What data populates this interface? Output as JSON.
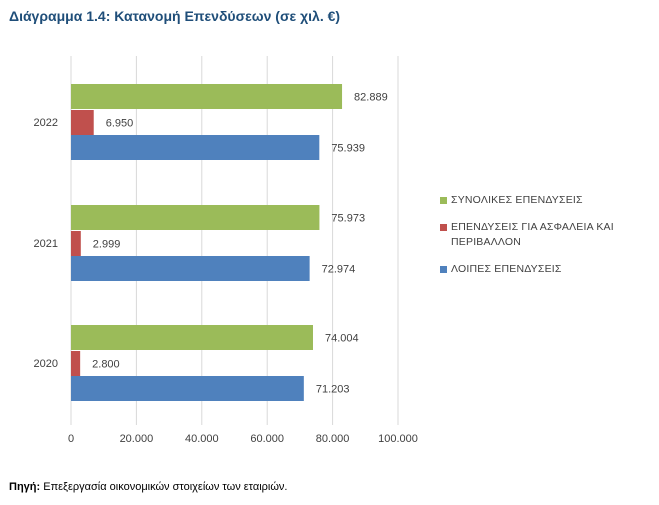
{
  "title": "Διάγραμμα 1.4: Κατανομή Επενδύσεων (σε χιλ. €)",
  "source": {
    "label": "Πηγή:",
    "text": " Επεξεργασία οικονομικών στοιχείων των εταιριών."
  },
  "chart_data": {
    "type": "bar",
    "orientation": "horizontal",
    "title": "Διάγραμμα 1.4: Κατανομή Επενδύσεων (σε χιλ. €)",
    "categories": [
      "2022",
      "2021",
      "2020"
    ],
    "series": [
      {
        "name": "ΣΥΝΟΛΙΚΕΣ ΕΠΕΝΔΥΣΕΙΣ",
        "color": "#9bbb59",
        "values": [
          82889,
          75973,
          74004
        ],
        "labels": [
          "82.889",
          "75.973",
          "74.004"
        ]
      },
      {
        "name": "ΕΠΕΝΔΥΣΕΙΣ ΓΙΑ ΑΣΦΑΛΕΙΑ ΚΑΙ ΠΕΡΙΒΑΛΛΟΝ",
        "color": "#c0504d",
        "values": [
          6950,
          2999,
          2800
        ],
        "labels": [
          "6.950",
          "2.999",
          "2.800"
        ]
      },
      {
        "name": "ΛΟΙΠΕΣ ΕΠΕΝΔΥΣΕΙΣ",
        "color": "#4f81bd",
        "values": [
          75939,
          72974,
          71203
        ],
        "labels": [
          "75.939",
          "72.974",
          "71.203"
        ]
      }
    ],
    "x_ticks": [
      0,
      20000,
      40000,
      60000,
      80000,
      100000
    ],
    "x_tick_labels": [
      "0",
      "20.000",
      "40.000",
      "60.000",
      "80.000",
      "100.000"
    ],
    "xlim": [
      0,
      100000
    ],
    "grid": true,
    "legend_position": "right"
  }
}
